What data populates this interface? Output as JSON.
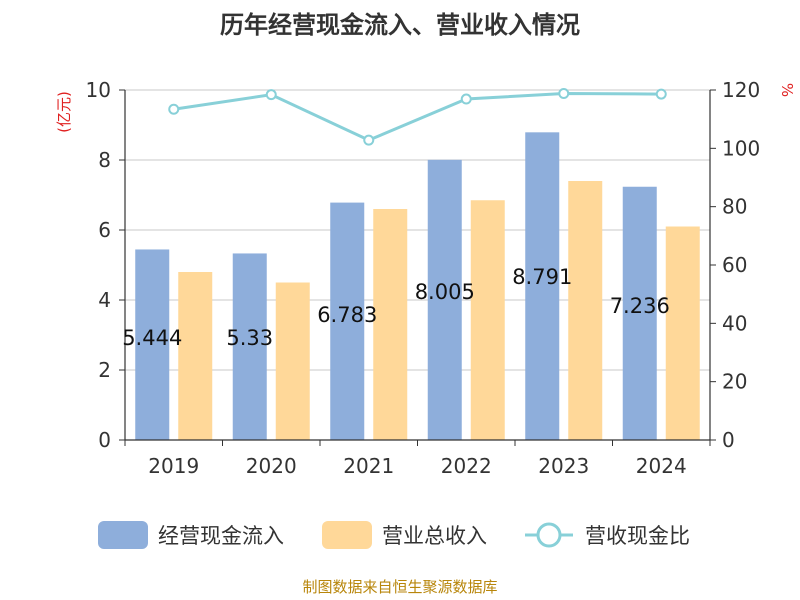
{
  "chart_data": {
    "type": "bar",
    "title": "历年经营现金流入、营业收入情况",
    "categories": [
      "2019",
      "2020",
      "2021",
      "2022",
      "2023",
      "2024"
    ],
    "y_left": {
      "unit_label": "(亿元)",
      "ylim": [
        0,
        10
      ],
      "ticks": [
        0,
        2,
        4,
        6,
        8,
        10
      ]
    },
    "y_right": {
      "unit_label": "%",
      "ylim": [
        0,
        120
      ],
      "ticks": [
        0,
        20,
        40,
        60,
        80,
        100,
        120
      ]
    },
    "series": [
      {
        "name": "经营现金流入",
        "kind": "bar",
        "axis": "left",
        "color": "#8eaedb",
        "values": [
          5.444,
          5.33,
          6.783,
          8.005,
          8.791,
          7.236
        ],
        "labels": [
          "5.444",
          "5.33",
          "6.783",
          "8.005",
          "8.791",
          "7.236"
        ]
      },
      {
        "name": "营业总收入",
        "kind": "bar",
        "axis": "left",
        "color": "#ffd899",
        "values": [
          4.8,
          4.5,
          6.6,
          6.85,
          7.4,
          6.1
        ]
      },
      {
        "name": "营收现金比",
        "kind": "line",
        "axis": "right",
        "color": "#88d0d8",
        "values": [
          113.4,
          118.4,
          102.8,
          116.9,
          118.8,
          118.6
        ]
      }
    ],
    "grid": true,
    "legend_position": "bottom"
  },
  "source_text": "制图数据来自恒生聚源数据库"
}
